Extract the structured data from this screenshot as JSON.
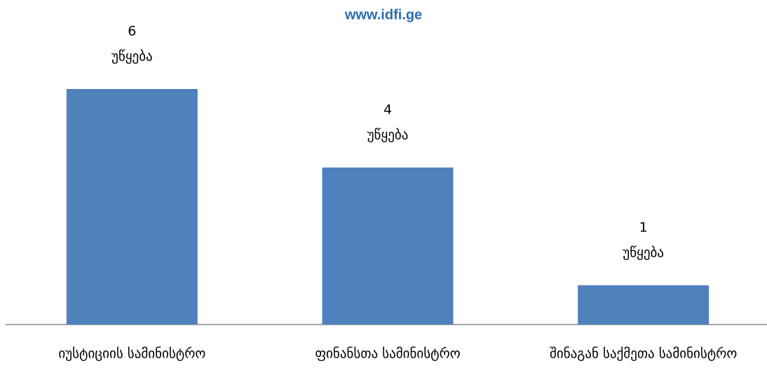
{
  "chart_data": {
    "type": "bar",
    "subtitle": "www.idfi.ge",
    "categories": [
      "იუსტიციის სამინისტრო",
      "ფინანსთა სამინისტრო",
      "შინაგან საქმეთა სამინისტრო"
    ],
    "values": [
      6,
      4,
      1
    ],
    "data_label_unit": "უწყება",
    "color": "#4f81bd"
  }
}
